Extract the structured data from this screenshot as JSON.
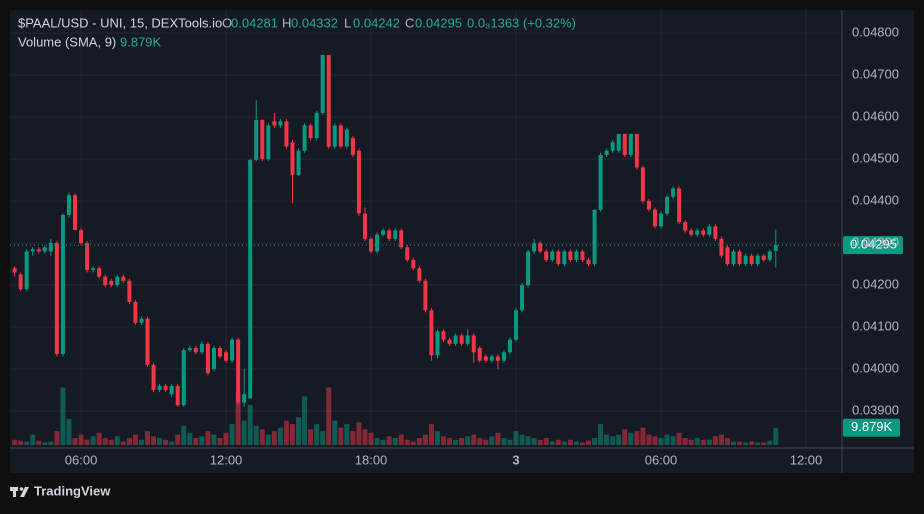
{
  "chart_data": {
    "type": "candlestick",
    "title": "$PAAL/USD - UNI, 15, DEXTools.io",
    "ohlc_letters": [
      "O",
      "H",
      "L",
      "C"
    ],
    "change_label": "0.0₃1363 (+0.32%)",
    "volume_title": "Volume (SMA, 9)",
    "volume_label": "9.879K",
    "brand": "TradingView",
    "up_color": "#089981",
    "down_color": "#f23645",
    "grid": true,
    "xlim": [
      3.06,
      37.49
    ],
    "xticks": [
      {
        "value": 6,
        "label": "06:00"
      },
      {
        "value": 12,
        "label": "12:00"
      },
      {
        "value": 18,
        "label": "18:00"
      },
      {
        "value": 24,
        "label": "3"
      },
      {
        "value": 30,
        "label": "06:00"
      },
      {
        "value": 36,
        "label": "12:00"
      }
    ],
    "ylim": [
      0.03812,
      0.04855
    ],
    "yticks": [
      {
        "value": 0.039,
        "label": "0.03900"
      },
      {
        "value": 0.04,
        "label": "0.04000"
      },
      {
        "value": 0.041,
        "label": "0.04100"
      },
      {
        "value": 0.042,
        "label": "0.04200"
      },
      {
        "value": 0.043,
        "label": "0.04300"
      },
      {
        "value": 0.044,
        "label": "0.04400"
      },
      {
        "value": 0.045,
        "label": "0.04500"
      },
      {
        "value": 0.046,
        "label": "0.04600"
      },
      {
        "value": 0.047,
        "label": "0.04700"
      },
      {
        "value": 0.048,
        "label": "0.04800"
      }
    ],
    "vlim": [
      0,
      250000
    ],
    "x": [
      3.25,
      3.5,
      3.75,
      4,
      4.25,
      4.5,
      4.75,
      5,
      5.25,
      5.5,
      5.75,
      6,
      6.25,
      6.5,
      6.75,
      7,
      7.25,
      7.5,
      7.75,
      8,
      8.25,
      8.5,
      8.75,
      9,
      9.25,
      9.5,
      9.75,
      10,
      10.25,
      10.5,
      10.75,
      11,
      11.25,
      11.5,
      11.75,
      12,
      12.25,
      12.5,
      12.75,
      13,
      13.25,
      13.5,
      13.75,
      14,
      14.25,
      14.5,
      14.75,
      15,
      15.25,
      15.5,
      15.75,
      16,
      16.25,
      16.5,
      16.75,
      17,
      17.25,
      17.5,
      17.75,
      18,
      18.25,
      18.5,
      18.75,
      19,
      19.25,
      19.5,
      19.75,
      20,
      20.25,
      20.5,
      20.75,
      21,
      21.25,
      21.5,
      21.75,
      22,
      22.25,
      22.5,
      22.75,
      23,
      23.25,
      23.5,
      23.75,
      24,
      24.25,
      24.5,
      24.75,
      25,
      25.25,
      25.5,
      25.75,
      26,
      26.25,
      26.5,
      26.75,
      27,
      27.25,
      27.5,
      27.75,
      28,
      28.25,
      28.5,
      28.75,
      29,
      29.25,
      29.5,
      29.75,
      30,
      30.25,
      30.5,
      30.75,
      31,
      31.25,
      31.5,
      31.75,
      32,
      32.25,
      32.5,
      32.75,
      33,
      33.25,
      33.5,
      33.75,
      34,
      34.25,
      34.5,
      34.75
    ],
    "open": [
      0.0424,
      0.04225,
      0.0419,
      0.0428,
      0.04285,
      0.0428,
      0.0428,
      0.043,
      0.04036,
      0.04367,
      0.04414,
      0.04331,
      0.043,
      0.04236,
      0.0424,
      0.0422,
      0.0421,
      0.042,
      0.0422,
      0.0421,
      0.0416,
      0.0411,
      0.0412,
      0.0401,
      0.0395,
      0.0396,
      0.0394,
      0.0396,
      0.03914,
      0.04045,
      0.0405,
      0.0404,
      0.0406,
      0.04,
      0.0405,
      0.0404,
      0.0402,
      0.0407,
      0.0392,
      0.0393,
      0.04498,
      0.04593,
      0.045,
      0.0459,
      0.0458,
      0.0459,
      0.0454,
      0.04462,
      0.0452,
      0.0458,
      0.0455,
      0.0461,
      0.04748,
      0.0453,
      0.0458,
      0.0453,
      0.0455,
      0.0452,
      0.0437,
      0.0431,
      0.0428,
      0.0432,
      0.0433,
      0.0431,
      0.0433,
      0.0429,
      0.0426,
      0.0424,
      0.0421,
      0.0414,
      0.04033,
      0.0409,
      0.0407,
      0.0406,
      0.0408,
      0.0406,
      0.0408,
      0.0405,
      0.0403,
      0.0402,
      0.0403,
      0.0402,
      0.0404,
      0.0407,
      0.0414,
      0.042,
      0.0428,
      0.043,
      0.0428,
      0.0426,
      0.0428,
      0.0425,
      0.0428,
      0.0426,
      0.0428,
      0.0426,
      0.0425,
      0.04379,
      0.0451,
      0.0452,
      0.0452,
      0.0456,
      0.0451,
      0.0456,
      0.0448,
      0.044,
      0.0438,
      0.0434,
      0.0437,
      0.0441,
      0.0443,
      0.0435,
      0.0433,
      0.0432,
      0.0433,
      0.0432,
      0.0434,
      0.0431,
      0.0429,
      0.0425,
      0.0428,
      0.0425,
      0.0427,
      0.0425,
      0.0427,
      0.0426,
      0.04281
    ],
    "high": [
      0.04245,
      0.0423,
      0.04285,
      0.0429,
      0.0429,
      0.04295,
      0.0431,
      0.04305,
      0.0437,
      0.0442,
      0.04418,
      0.04335,
      0.04305,
      0.04245,
      0.04245,
      0.04225,
      0.04215,
      0.04225,
      0.04225,
      0.04215,
      0.04165,
      0.04125,
      0.04125,
      0.04015,
      0.03965,
      0.03965,
      0.03965,
      0.03965,
      0.0405,
      0.04055,
      0.04055,
      0.04065,
      0.04065,
      0.04055,
      0.04055,
      0.04045,
      0.04075,
      0.04075,
      0.04,
      0.045,
      0.0464,
      0.04595,
      0.04585,
      0.0461,
      0.04595,
      0.04595,
      0.04545,
      0.04525,
      0.04585,
      0.04585,
      0.04615,
      0.04748,
      0.04748,
      0.04585,
      0.04585,
      0.04575,
      0.04555,
      0.04525,
      0.04385,
      0.04315,
      0.04325,
      0.04335,
      0.04335,
      0.04335,
      0.04335,
      0.04295,
      0.04265,
      0.04245,
      0.04215,
      0.04145,
      0.04095,
      0.04095,
      0.04075,
      0.04085,
      0.04085,
      0.04095,
      0.04085,
      0.04055,
      0.04035,
      0.04035,
      0.04035,
      0.04045,
      0.04075,
      0.04145,
      0.04205,
      0.04285,
      0.0431,
      0.04305,
      0.04285,
      0.04285,
      0.04285,
      0.04285,
      0.04285,
      0.04285,
      0.04285,
      0.04265,
      0.0438,
      0.04515,
      0.04525,
      0.04545,
      0.0456,
      0.0456,
      0.0456,
      0.0456,
      0.04485,
      0.04405,
      0.04385,
      0.04375,
      0.04415,
      0.04435,
      0.04435,
      0.04355,
      0.04335,
      0.04335,
      0.04335,
      0.04345,
      0.04345,
      0.04315,
      0.04295,
      0.04285,
      0.04285,
      0.04275,
      0.04275,
      0.04275,
      0.04275,
      0.04285,
      0.04332
    ],
    "low": [
      0.0422,
      0.04185,
      0.04185,
      0.0427,
      0.04275,
      0.04275,
      0.0427,
      0.0403,
      0.0403,
      0.0436,
      0.0433,
      0.04295,
      0.0423,
      0.0423,
      0.04215,
      0.04195,
      0.04195,
      0.04195,
      0.04205,
      0.04155,
      0.04105,
      0.04105,
      0.04005,
      0.03945,
      0.03945,
      0.03945,
      0.03935,
      0.0391,
      0.0391,
      0.0404,
      0.04035,
      0.04035,
      0.03985,
      0.03995,
      0.04025,
      0.04015,
      0.04015,
      0.03915,
      0.0391,
      0.0393,
      0.04495,
      0.04495,
      0.04495,
      0.04575,
      0.04575,
      0.04525,
      0.04395,
      0.0446,
      0.04515,
      0.04545,
      0.04545,
      0.04605,
      0.04525,
      0.04525,
      0.04525,
      0.04525,
      0.04505,
      0.04365,
      0.04305,
      0.04275,
      0.04275,
      0.04315,
      0.04305,
      0.04305,
      0.04285,
      0.04255,
      0.04235,
      0.04205,
      0.04135,
      0.0402,
      0.04025,
      0.04065,
      0.04055,
      0.04055,
      0.04055,
      0.04055,
      0.04015,
      0.04015,
      0.04015,
      0.04015,
      0.04,
      0.04015,
      0.04035,
      0.04065,
      0.04135,
      0.04195,
      0.04275,
      0.04275,
      0.04255,
      0.04255,
      0.04245,
      0.04245,
      0.04255,
      0.04255,
      0.04255,
      0.04245,
      0.04245,
      0.04375,
      0.04505,
      0.04515,
      0.04515,
      0.04505,
      0.04505,
      0.04475,
      0.04395,
      0.04375,
      0.04335,
      0.04335,
      0.04365,
      0.04405,
      0.04345,
      0.04325,
      0.04315,
      0.04315,
      0.04315,
      0.04315,
      0.04305,
      0.04265,
      0.04245,
      0.04245,
      0.04245,
      0.04245,
      0.04245,
      0.04245,
      0.04255,
      0.04255,
      0.04242
    ],
    "close": [
      0.0423,
      0.0419,
      0.0428,
      0.04285,
      0.0428,
      0.0429,
      0.043,
      0.04036,
      0.04367,
      0.04414,
      0.04331,
      0.043,
      0.04236,
      0.0424,
      0.0422,
      0.042,
      0.042,
      0.0422,
      0.0421,
      0.0416,
      0.0411,
      0.0412,
      0.0401,
      0.0395,
      0.0396,
      0.0395,
      0.0396,
      0.03914,
      0.04045,
      0.0405,
      0.0404,
      0.0406,
      0.0399,
      0.0405,
      0.0403,
      0.0402,
      0.0407,
      0.0392,
      0.0394,
      0.04498,
      0.04593,
      0.045,
      0.0458,
      0.0458,
      0.0459,
      0.0453,
      0.04462,
      0.0452,
      0.0458,
      0.0455,
      0.0461,
      0.04748,
      0.0453,
      0.0458,
      0.0453,
      0.0457,
      0.0451,
      0.04371,
      0.0431,
      0.0428,
      0.0432,
      0.0433,
      0.0431,
      0.0433,
      0.0429,
      0.0426,
      0.0424,
      0.0421,
      0.0414,
      0.04033,
      0.0409,
      0.0407,
      0.0406,
      0.0408,
      0.0406,
      0.0408,
      0.0404,
      0.0402,
      0.0402,
      0.0403,
      0.0402,
      0.0404,
      0.0407,
      0.0414,
      0.042,
      0.0428,
      0.043,
      0.0428,
      0.0426,
      0.0428,
      0.0425,
      0.0428,
      0.0426,
      0.0428,
      0.0426,
      0.0425,
      0.04379,
      0.0451,
      0.0452,
      0.0454,
      0.0456,
      0.0451,
      0.0456,
      0.0448,
      0.044,
      0.0438,
      0.0434,
      0.0437,
      0.0441,
      0.0443,
      0.0435,
      0.0433,
      0.0432,
      0.0433,
      0.0432,
      0.0434,
      0.0431,
      0.0427,
      0.0425,
      0.0428,
      0.0425,
      0.0427,
      0.0425,
      0.0427,
      0.0426,
      0.0428,
      0.04295
    ],
    "volume": [
      3000,
      2500,
      2000,
      6000,
      2500,
      1500,
      2000,
      8000,
      33000,
      15000,
      4000,
      6000,
      3000,
      5000,
      7000,
      4000,
      3000,
      5000,
      2000,
      4000,
      6000,
      3000,
      8000,
      5000,
      4000,
      3000,
      2000,
      6000,
      11000,
      7000,
      4000,
      5000,
      8000,
      6000,
      4000,
      7000,
      12000,
      30000,
      14000,
      23000,
      11000,
      9000,
      6000,
      8000,
      10000,
      14000,
      12000,
      16000,
      28000,
      9000,
      12000,
      8000,
      33000,
      14000,
      10000,
      12000,
      8000,
      13000,
      9000,
      7000,
      4000,
      3000,
      5000,
      4000,
      6000,
      3000,
      2000,
      4000,
      6000,
      12000,
      8000,
      5000,
      4000,
      3000,
      4000,
      5000,
      6000,
      4000,
      3000,
      5000,
      7000,
      4000,
      3000,
      8000,
      6000,
      5000,
      4000,
      3000,
      4000,
      2000,
      3000,
      2000,
      3000,
      2000,
      1500,
      2500,
      4000,
      12000,
      6000,
      5000,
      6000,
      9000,
      7000,
      8000,
      10000,
      6000,
      5000,
      4000,
      6000,
      5000,
      7000,
      4000,
      3000,
      4000,
      3000,
      3000,
      5000,
      6000,
      4000,
      2000,
      2000,
      1500,
      2000,
      1500,
      1500,
      2500,
      9879
    ]
  }
}
